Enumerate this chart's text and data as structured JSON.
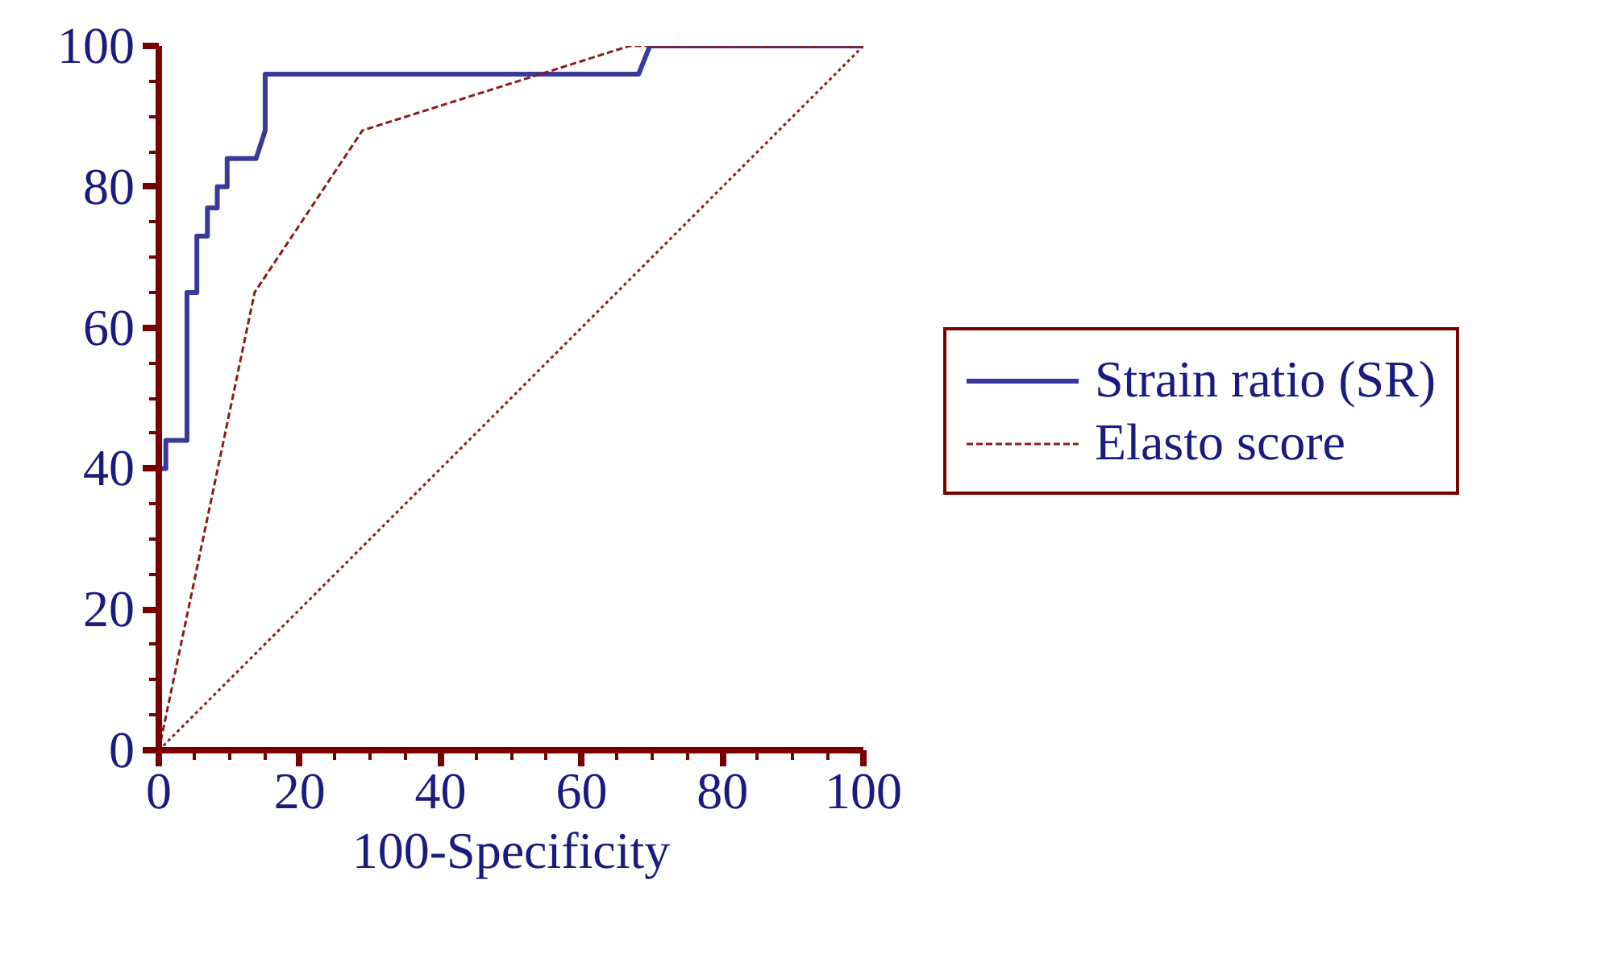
{
  "chart_data": {
    "type": "line",
    "xlabel": "100-Specificity",
    "xlim": [
      0,
      100
    ],
    "ylim": [
      0,
      100
    ],
    "xticks": [
      0,
      20,
      40,
      60,
      80,
      100
    ],
    "yticks": [
      0,
      20,
      40,
      60,
      80,
      100
    ],
    "grid": false,
    "legend": "right",
    "series": [
      {
        "name": "Strain ratio (SR)",
        "color": "#3a3a9a",
        "line_style": "solid",
        "x": [
          0,
          0,
          1,
          1,
          4,
          4,
          5.4,
          5.4,
          6.9,
          6.9,
          8.3,
          8.3,
          9.7,
          9.7,
          13.8,
          15.1,
          15.1,
          68.1,
          69.7,
          100
        ],
        "values": [
          0,
          40,
          40,
          44,
          44,
          65,
          65,
          73,
          73,
          77,
          77,
          80,
          80,
          84,
          84,
          88,
          96,
          96,
          100,
          100
        ]
      },
      {
        "name": "Elasto score",
        "color": "#8b1a1a",
        "line_style": "dashed",
        "x": [
          0,
          13.6,
          28.9,
          66.8,
          100
        ],
        "values": [
          0,
          65,
          88,
          100,
          100
        ]
      },
      {
        "color": "#8b1a1a",
        "line_style": "dotted",
        "x": [
          0,
          100
        ],
        "values": [
          0,
          100
        ]
      }
    ]
  }
}
